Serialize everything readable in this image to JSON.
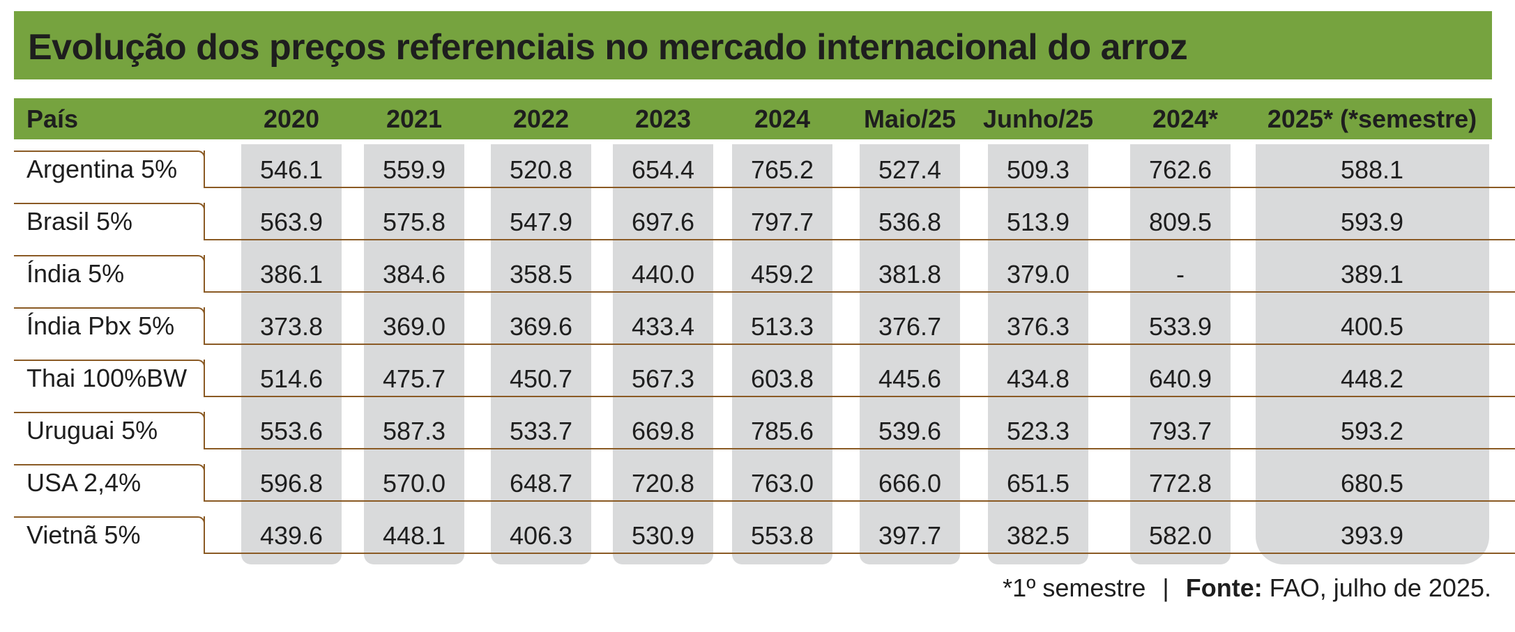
{
  "title": "Evolução dos preços referenciais no mercado internacional do arroz",
  "chart_data": {
    "type": "table",
    "columns": [
      "País",
      "2020",
      "2021",
      "2022",
      "2023",
      "2024",
      "Maio/25",
      "Junho/25",
      "2024*",
      "2025* (*semestre)"
    ],
    "rows": [
      {
        "country": "Argentina 5%",
        "values": [
          "546.1",
          "559.9",
          "520.8",
          "654.4",
          "765.2",
          "527.4",
          "509.3",
          "762.6",
          "588.1"
        ]
      },
      {
        "country": "Brasil 5%",
        "values": [
          "563.9",
          "575.8",
          "547.9",
          "697.6",
          "797.7",
          "536.8",
          "513.9",
          "809.5",
          "593.9"
        ]
      },
      {
        "country": "Índia 5%",
        "values": [
          "386.1",
          "384.6",
          "358.5",
          "440.0",
          "459.2",
          "381.8",
          "379.0",
          "-",
          "389.1"
        ]
      },
      {
        "country": "Índia Pbx 5%",
        "values": [
          "373.8",
          "369.0",
          "369.6",
          "433.4",
          "513.3",
          "376.7",
          "376.3",
          "533.9",
          "400.5"
        ]
      },
      {
        "country": "Thai 100%BW",
        "values": [
          "514.6",
          "475.7",
          "450.7",
          "567.3",
          "603.8",
          "445.6",
          "434.8",
          "640.9",
          "448.2"
        ]
      },
      {
        "country": "Uruguai 5%",
        "values": [
          "553.6",
          "587.3",
          "533.7",
          "669.8",
          "785.6",
          "539.6",
          "523.3",
          "793.7",
          "593.2"
        ]
      },
      {
        "country": "USA 2,4%",
        "values": [
          "596.8",
          "570.0",
          "648.7",
          "720.8",
          "763.0",
          "666.0",
          "651.5",
          "772.8",
          "680.5"
        ]
      },
      {
        "country": "Vietnã 5%",
        "values": [
          "439.6",
          "448.1",
          "406.3",
          "530.9",
          "553.8",
          "397.7",
          "382.5",
          "582.0",
          "393.9"
        ]
      }
    ]
  },
  "footer": {
    "note": "*1º semestre",
    "separator": "|",
    "source_label": "Fonte:",
    "source_text": "FAO, julho de 2025."
  },
  "colors": {
    "header_green": "#76a33f",
    "column_gray": "#d9dadb",
    "rule_brown": "#8a5a24"
  }
}
